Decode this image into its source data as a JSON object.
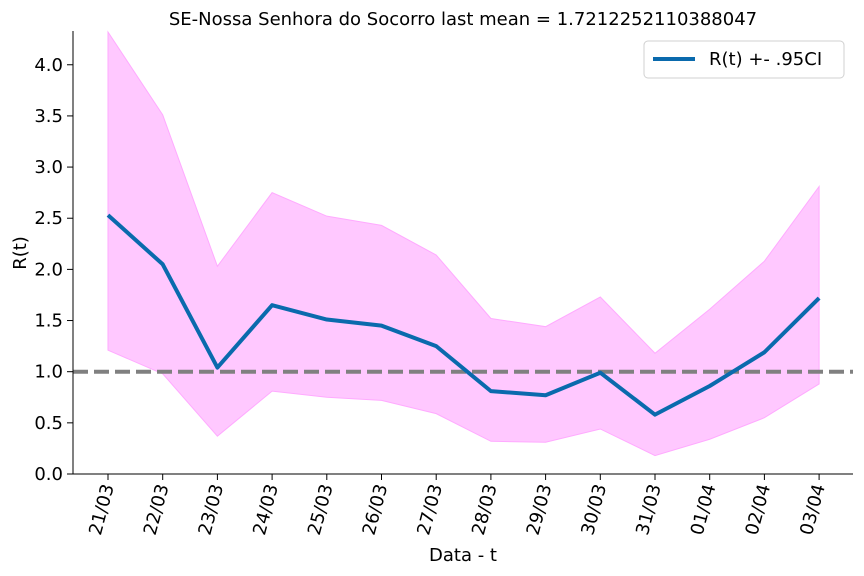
{
  "chart_data": {
    "type": "line",
    "title": "SE-Nossa Senhora do Socorro last mean = 1.7212252110388047",
    "xlabel": "Data - t",
    "ylabel": "R(t)",
    "categories": [
      "21/03",
      "22/03",
      "23/03",
      "24/03",
      "25/03",
      "26/03",
      "27/03",
      "28/03",
      "29/03",
      "30/03",
      "31/03",
      "01/04",
      "02/04",
      "03/04"
    ],
    "ylim": [
      0,
      4.33
    ],
    "yticks": [
      "0.0",
      "0.5",
      "1.0",
      "1.5",
      "2.0",
      "2.5",
      "3.0",
      "3.5",
      "4.0"
    ],
    "series": [
      {
        "name": "R(t) +- .95CI",
        "color": "#0a6aad",
        "values": [
          2.53,
          2.05,
          1.04,
          1.65,
          1.51,
          1.45,
          1.25,
          0.81,
          0.77,
          0.99,
          0.58,
          0.86,
          1.19,
          1.72
        ]
      }
    ],
    "ci_band": {
      "color": "#ffc8ff",
      "lower": [
        1.21,
        0.98,
        0.37,
        0.81,
        0.75,
        0.72,
        0.59,
        0.32,
        0.31,
        0.44,
        0.18,
        0.34,
        0.55,
        0.88
      ],
      "upper": [
        4.32,
        3.51,
        2.03,
        2.75,
        2.52,
        2.43,
        2.14,
        1.52,
        1.44,
        1.73,
        1.18,
        1.61,
        2.08,
        2.81
      ]
    },
    "reference_line": {
      "y": 1.0,
      "color": "#808080",
      "style": "dashed"
    },
    "legend": {
      "position": "top-right"
    },
    "grid": false
  }
}
